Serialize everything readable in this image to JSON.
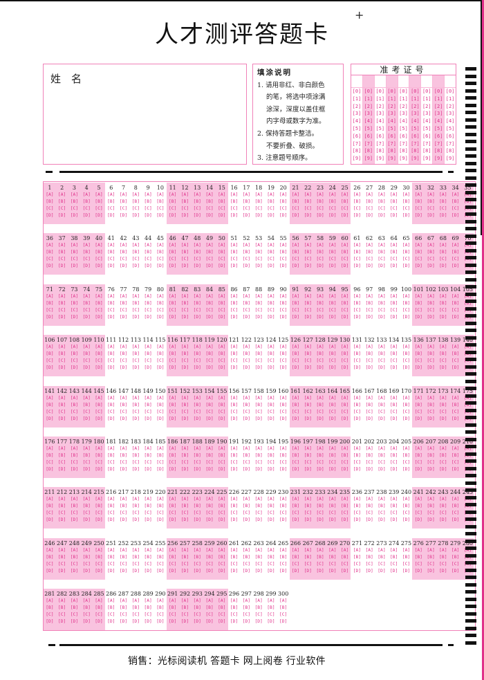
{
  "title": "人才测评答题卡",
  "corner_mark": "+",
  "name_box": {
    "label": "姓　名"
  },
  "instructions": {
    "heading": "填涂说明",
    "lines": [
      "1. 请用非红、非白颜色",
      "的笔，将选中项涂满",
      "涂深，深度以盖住框",
      "内字母或数字为准。",
      "2. 保持答题卡整洁。",
      "不要折叠、破损。",
      "3. 注意题号顺序。"
    ]
  },
  "ticket": {
    "heading": "准考证号",
    "columns": 9,
    "digits": [
      "0",
      "1",
      "2",
      "3",
      "4",
      "5",
      "6",
      "7",
      "8",
      "9"
    ]
  },
  "answers": {
    "question_count": 300,
    "per_row": 35,
    "group_size": 5,
    "options": [
      "A",
      "B",
      "C",
      "D"
    ]
  },
  "footer": "销售：光标阅读机  答题卡  网上阅卷  行业软件",
  "colors": {
    "accent_pink": "#e0308a",
    "fill_pink": "#f9c3df",
    "border_pink": "#f080b8"
  }
}
